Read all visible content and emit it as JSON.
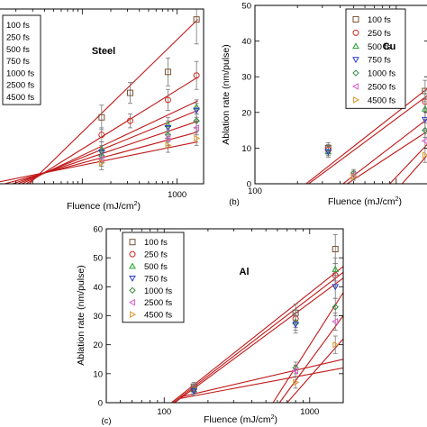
{
  "chart_data": [
    {
      "id": "steel",
      "type": "scatter",
      "title": "Steel",
      "panel_label": "",
      "xlabel": "Fluence (mJ/cm",
      "xlabel_sup": "2",
      "xlabel_close": ")",
      "ylabel": "",
      "xscale": "log",
      "xlim": [
        13,
        1900
      ],
      "ylim": [
        0,
        50
      ],
      "x_ticks": [
        {
          "v": 100,
          "label": ""
        },
        {
          "v": 1000,
          "label": "1000"
        }
      ],
      "y_ticks": [],
      "legend": {
        "labels": [
          "100 fs",
          "250 fs",
          "500 fs",
          "750 fs",
          "1000 fs",
          "2500 fs",
          "4500 fs"
        ],
        "markers": "none",
        "placement": "top-left"
      },
      "series": [
        {
          "name": "100 fs",
          "marker": "square",
          "x": [
            160,
            320,
            800,
            1600
          ],
          "y": [
            19,
            26,
            32,
            47
          ],
          "err": [
            3.5,
            3,
            4,
            7
          ]
        },
        {
          "name": "250 fs",
          "marker": "circle",
          "x": [
            160,
            320,
            800,
            1600
          ],
          "y": [
            14,
            18,
            24,
            31
          ],
          "err": [
            2,
            2,
            3,
            4
          ]
        },
        {
          "name": "500 fs",
          "marker": "triangle-up",
          "x": [
            160,
            800,
            1600
          ],
          "y": [
            10,
            17,
            22
          ],
          "err": [
            2,
            2,
            2
          ]
        },
        {
          "name": "750 fs",
          "marker": "triangle-down",
          "x": [
            160,
            800,
            1600
          ],
          "y": [
            9,
            16,
            21
          ],
          "err": [
            2,
            2,
            2
          ]
        },
        {
          "name": "1000 fs",
          "marker": "diamond",
          "x": [
            160,
            800,
            1600
          ],
          "y": [
            8,
            14,
            18
          ],
          "err": [
            2,
            2,
            2
          ]
        },
        {
          "name": "2500 fs",
          "marker": "triangle-left",
          "x": [
            160,
            800,
            1600
          ],
          "y": [
            7,
            13,
            16
          ],
          "err": [
            2,
            2,
            2
          ]
        },
        {
          "name": "4500 fs",
          "marker": "triangle-right",
          "x": [
            160,
            800,
            1600
          ],
          "y": [
            6,
            11,
            13
          ],
          "err": [
            2,
            2,
            2
          ]
        }
      ],
      "fit_lines": [
        {
          "x": [
            13,
            1650
          ],
          "y": [
            -8.7,
            47
          ]
        },
        {
          "x": [
            13,
            1650
          ],
          "y": [
            -5,
            30.5
          ]
        },
        {
          "x": [
            13,
            1650
          ],
          "y": [
            -3.2,
            23.7
          ]
        },
        {
          "x": [
            13,
            1650
          ],
          "y": [
            -2.3,
            21
          ]
        },
        {
          "x": [
            13,
            1650
          ],
          "y": [
            -1.4,
            17.9
          ]
        },
        {
          "x": [
            13,
            1650
          ],
          "y": [
            -0.5,
            14.8
          ]
        },
        {
          "x": [
            13,
            1650
          ],
          "y": [
            0.5,
            12
          ]
        }
      ]
    },
    {
      "id": "cu",
      "type": "scatter",
      "title": "Cu",
      "panel_label": "(b)",
      "xlabel": "Fluence (mJ/cm",
      "xlabel_sup": "2",
      "xlabel_close": ")",
      "ylabel": "Ablation rate (nm/pulse)",
      "xscale": "log",
      "xlim": [
        100,
        1700
      ],
      "ylim": [
        0,
        50
      ],
      "x_ticks": [
        {
          "v": 100,
          "label": "100"
        },
        {
          "v": 1000,
          "label": ""
        }
      ],
      "y_ticks": [
        {
          "v": 0,
          "label": "0"
        },
        {
          "v": 10,
          "label": "10"
        },
        {
          "v": 20,
          "label": "20"
        },
        {
          "v": 30,
          "label": "30"
        },
        {
          "v": 40,
          "label": "40"
        },
        {
          "v": 50,
          "label": "50"
        }
      ],
      "legend": {
        "labels": [
          "100 fs",
          "250 fs",
          "500 fs",
          "750 fs",
          "1000 fs",
          "2500 fs",
          "4500 fs"
        ],
        "markers": "symbols",
        "placement": "top-right"
      },
      "series": [
        {
          "name": "100 fs",
          "marker": "square",
          "x": [
            330,
            1600
          ],
          "y": [
            10,
            26
          ],
          "err": [
            1.5,
            3
          ]
        },
        {
          "name": "250 fs",
          "marker": "circle",
          "x": [
            330,
            1600
          ],
          "y": [
            9.5,
            23
          ],
          "err": [
            1.5,
            3
          ]
        },
        {
          "name": "500 fs",
          "marker": "triangle-up",
          "x": [
            330,
            1600
          ],
          "y": [
            9,
            21
          ],
          "err": [
            1.5,
            3
          ]
        },
        {
          "name": "750 fs",
          "marker": "triangle-down",
          "x": [
            330,
            1600
          ],
          "y": [
            9,
            18
          ],
          "err": [
            1.5,
            3
          ]
        },
        {
          "name": "1000 fs",
          "marker": "diamond",
          "x": [
            500,
            1600
          ],
          "y": [
            3,
            15
          ],
          "err": [
            1,
            2
          ]
        },
        {
          "name": "2500 fs",
          "marker": "triangle-left",
          "x": [
            500,
            1600
          ],
          "y": [
            2.5,
            12
          ],
          "err": [
            1,
            2
          ]
        },
        {
          "name": "4500 fs",
          "marker": "triangle-right",
          "x": [
            500,
            1600
          ],
          "y": [
            2,
            8
          ],
          "err": [
            1,
            2
          ]
        }
      ],
      "fit_lines": [
        {
          "x": [
            230,
            1700
          ],
          "y": [
            0,
            27
          ]
        },
        {
          "x": [
            240,
            1700
          ],
          "y": [
            0,
            25
          ]
        },
        {
          "x": [
            420,
            1700
          ],
          "y": [
            0,
            18.5
          ]
        },
        {
          "x": [
            450,
            1700
          ],
          "y": [
            0,
            15
          ]
        },
        {
          "x": [
            900,
            1700
          ],
          "y": [
            0,
            11.5
          ]
        },
        {
          "x": [
            1100,
            1700
          ],
          "y": [
            0,
            8.5
          ]
        }
      ]
    },
    {
      "id": "al",
      "type": "scatter",
      "title": "Al",
      "panel_label": "(c)",
      "xlabel": "Fluence (mJ/cm",
      "xlabel_sup": "2",
      "xlabel_close": ")",
      "ylabel": "Ablation rate (nm/pulse)",
      "xscale": "log",
      "xlim": [
        40,
        1700
      ],
      "ylim": [
        0,
        60
      ],
      "x_ticks": [
        {
          "v": 100,
          "label": "100"
        },
        {
          "v": 1000,
          "label": "1000"
        }
      ],
      "y_ticks": [
        {
          "v": 0,
          "label": "0"
        },
        {
          "v": 10,
          "label": "10"
        },
        {
          "v": 20,
          "label": "20"
        },
        {
          "v": 30,
          "label": "30"
        },
        {
          "v": 40,
          "label": "40"
        },
        {
          "v": 50,
          "label": "50"
        },
        {
          "v": 60,
          "label": "60"
        }
      ],
      "legend": {
        "labels": [
          "100 fs",
          "250 fs",
          "500 fs",
          "750 fs",
          "1000 fs",
          "2500 fs",
          "4500 fs"
        ],
        "markers": "symbols",
        "placement": "top-left"
      },
      "series": [
        {
          "name": "100 fs",
          "marker": "square",
          "x": [
            160,
            800,
            1500
          ],
          "y": [
            5.5,
            31,
            53
          ],
          "err": [
            1.5,
            3,
            5
          ]
        },
        {
          "name": "250 fs",
          "marker": "circle",
          "x": [
            160,
            800,
            1500
          ],
          "y": [
            5,
            29,
            44
          ],
          "err": [
            1.5,
            3,
            4
          ]
        },
        {
          "name": "500 fs",
          "marker": "triangle-up",
          "x": [
            160,
            800,
            1500
          ],
          "y": [
            4.5,
            28,
            46
          ],
          "err": [
            1.5,
            3,
            4
          ]
        },
        {
          "name": "750 fs",
          "marker": "triangle-down",
          "x": [
            160,
            800,
            1500
          ],
          "y": [
            4,
            27,
            40
          ],
          "err": [
            1.5,
            3,
            4
          ]
        },
        {
          "name": "1000 fs",
          "marker": "diamond",
          "x": [
            800,
            1500
          ],
          "y": [
            12,
            33
          ],
          "err": [
            2,
            3
          ]
        },
        {
          "name": "2500 fs",
          "marker": "triangle-left",
          "x": [
            800,
            1500
          ],
          "y": [
            11,
            28
          ],
          "err": [
            2,
            3
          ]
        },
        {
          "name": "4500 fs",
          "marker": "triangle-right",
          "x": [
            800,
            1500
          ],
          "y": [
            7,
            20
          ],
          "err": [
            2,
            3
          ]
        }
      ],
      "fit_lines": [
        {
          "x": [
            112,
            1700
          ],
          "y": [
            0,
            47
          ]
        },
        {
          "x": [
            115,
            1700
          ],
          "y": [
            0,
            45
          ]
        },
        {
          "x": [
            118,
            1700
          ],
          "y": [
            0,
            43
          ]
        },
        {
          "x": [
            130,
            1700
          ],
          "y": [
            2,
            15
          ]
        },
        {
          "x": [
            130,
            1700
          ],
          "y": [
            1.5,
            12
          ]
        },
        {
          "x": [
            560,
            1700
          ],
          "y": [
            0,
            38
          ]
        },
        {
          "x": [
            620,
            1700
          ],
          "y": [
            0,
            30
          ]
        },
        {
          "x": [
            700,
            1700
          ],
          "y": [
            0,
            22
          ]
        }
      ]
    }
  ]
}
